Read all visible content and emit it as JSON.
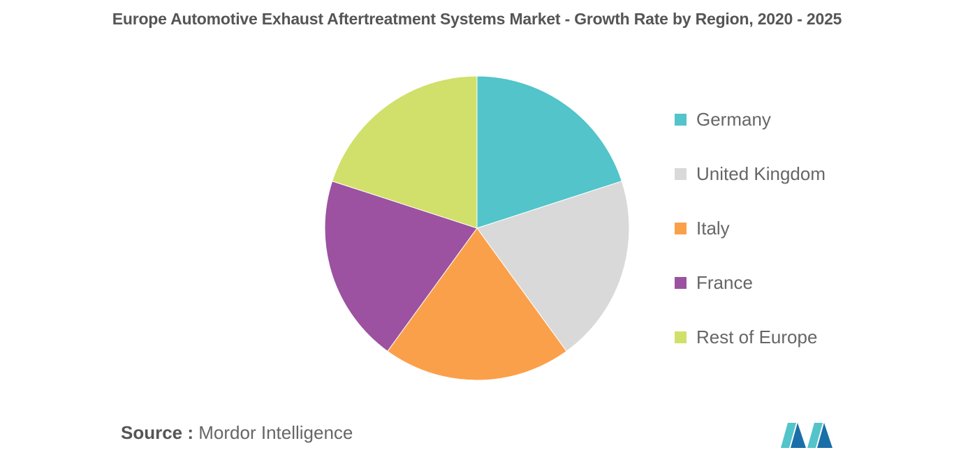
{
  "chart_data": {
    "type": "pie",
    "title": "Europe Automotive Exhaust Aftertreatment Systems Market - Growth Rate by Region, 2020 - 2025",
    "categories": [
      "Germany",
      "United Kingdom",
      "Italy",
      "France",
      "Rest of Europe"
    ],
    "values": [
      20,
      20,
      20,
      20,
      20
    ],
    "colors": [
      "#52C4CA",
      "#D9D9D9",
      "#FBA04A",
      "#9C52A0",
      "#D1E06A"
    ],
    "legend_position": "right"
  },
  "source": {
    "label": "Source :",
    "text": "Mordor Intelligence"
  },
  "logo": {
    "icon": "mordor-intelligence-logo-icon",
    "colors": [
      "#1B6FA8",
      "#52C4CA"
    ]
  }
}
